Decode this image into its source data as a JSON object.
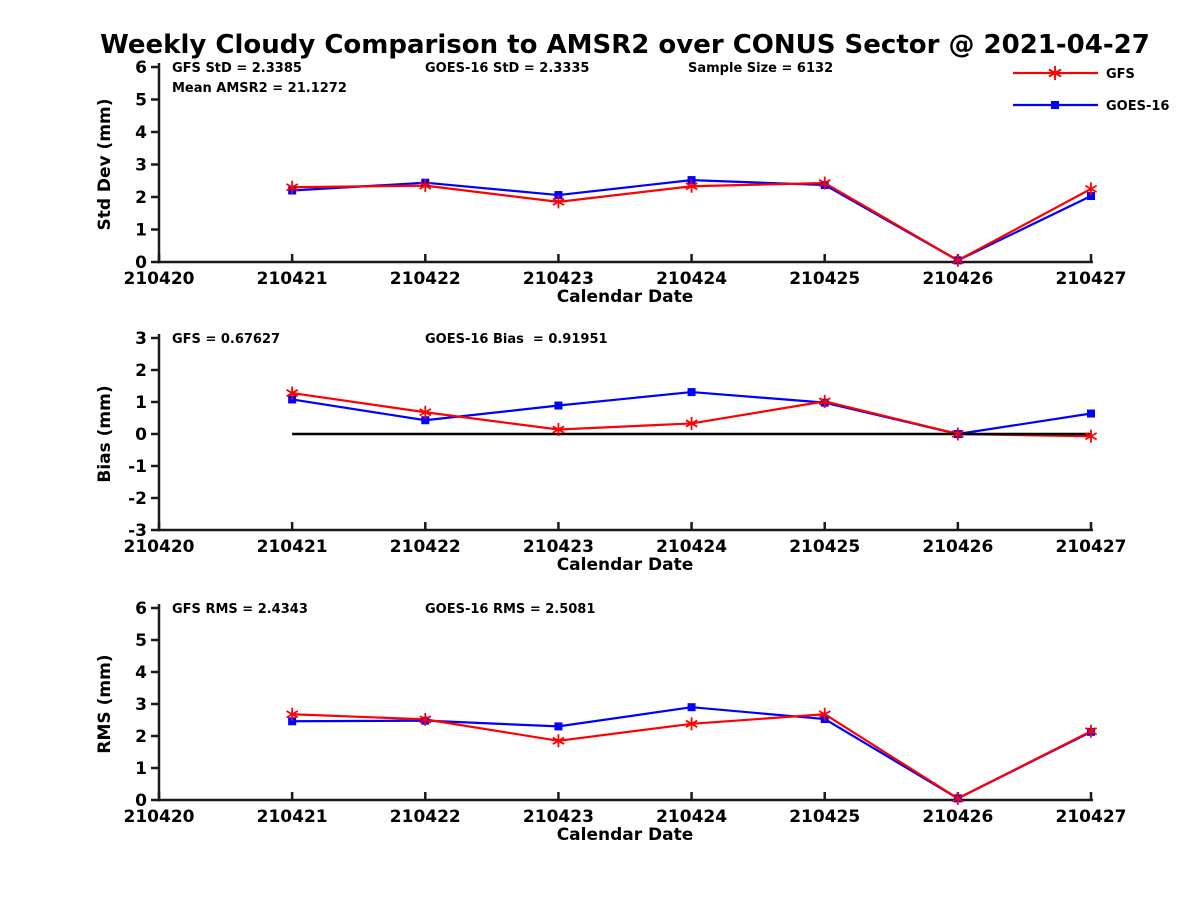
{
  "title": "Weekly Cloudy Comparison to AMSR2 over CONUS Sector @ 2021-04-27",
  "background": "#ffffff",
  "axis_color": "#1a1a1a",
  "text_color": "#000000",
  "x_tick_labels": [
    "210420",
    "210421",
    "210422",
    "210423",
    "210424",
    "210425",
    "210426",
    "210427"
  ],
  "legend": {
    "entries": [
      {
        "label": "GFS",
        "color": "#ff0000",
        "marker": "asterisk"
      },
      {
        "label": "GOES-16",
        "color": "#0000ff",
        "marker": "square"
      }
    ]
  },
  "chart_data": [
    {
      "type": "line",
      "panel_id": "stddev",
      "ylabel": "Std Dev (mm)",
      "xlabel": "Calendar Date",
      "ylim": [
        0,
        6
      ],
      "yticks": [
        0,
        1,
        2,
        3,
        4,
        5,
        6
      ],
      "x": [
        "210421",
        "210422",
        "210423",
        "210424",
        "210425",
        "210426",
        "210427"
      ],
      "annotations": [
        {
          "text": "GFS StD = 2.3385",
          "col": 0,
          "row": 0
        },
        {
          "text": "GOES-16 StD = 2.3335",
          "col": 1,
          "row": 0
        },
        {
          "text": "Sample Size = 6132",
          "col": 2,
          "row": 0
        },
        {
          "text": "Mean AMSR2 = 21.1272",
          "col": 0,
          "row": 1
        }
      ],
      "zero_line": false,
      "series": [
        {
          "name": "GOES-16",
          "color": "#0000ff",
          "marker": "square",
          "values": [
            2.2,
            2.44,
            2.06,
            2.52,
            2.37,
            0.05,
            2.03
          ]
        },
        {
          "name": "GFS",
          "color": "#ff0000",
          "marker": "asterisk",
          "values": [
            2.3,
            2.35,
            1.85,
            2.33,
            2.43,
            0.05,
            2.25
          ]
        }
      ]
    },
    {
      "type": "line",
      "panel_id": "bias",
      "ylabel": "Bias (mm)",
      "xlabel": "Calendar Date",
      "ylim": [
        -3,
        3
      ],
      "yticks": [
        -3,
        -2,
        -1,
        0,
        1,
        2,
        3
      ],
      "x": [
        "210421",
        "210422",
        "210423",
        "210424",
        "210425",
        "210426",
        "210427"
      ],
      "annotations": [
        {
          "text": "GFS = 0.67627",
          "col": 0,
          "row": 0
        },
        {
          "text": "GOES-16 Bias  = 0.91951",
          "col": 1,
          "row": 0
        }
      ],
      "zero_line": true,
      "series": [
        {
          "name": "GOES-16",
          "color": "#0000ff",
          "marker": "square",
          "values": [
            1.08,
            0.43,
            0.89,
            1.31,
            0.98,
            0.0,
            0.64
          ]
        },
        {
          "name": "GFS",
          "color": "#ff0000",
          "marker": "asterisk",
          "values": [
            1.28,
            0.68,
            0.14,
            0.33,
            1.02,
            0.0,
            -0.07
          ]
        }
      ]
    },
    {
      "type": "line",
      "panel_id": "rms",
      "ylabel": "RMS (mm)",
      "xlabel": "Calendar Date",
      "ylim": [
        0,
        6
      ],
      "yticks": [
        0,
        1,
        2,
        3,
        4,
        5,
        6
      ],
      "x": [
        "210421",
        "210422",
        "210423",
        "210424",
        "210425",
        "210426",
        "210427"
      ],
      "annotations": [
        {
          "text": "GFS RMS = 2.4343",
          "col": 0,
          "row": 0
        },
        {
          "text": "GOES-16 RMS = 2.5081",
          "col": 1,
          "row": 0
        }
      ],
      "zero_line": false,
      "series": [
        {
          "name": "GOES-16",
          "color": "#0000ff",
          "marker": "square",
          "values": [
            2.46,
            2.48,
            2.3,
            2.9,
            2.53,
            0.05,
            2.13
          ]
        },
        {
          "name": "GFS",
          "color": "#ff0000",
          "marker": "asterisk",
          "values": [
            2.68,
            2.52,
            1.85,
            2.38,
            2.68,
            0.05,
            2.15
          ]
        }
      ]
    }
  ]
}
